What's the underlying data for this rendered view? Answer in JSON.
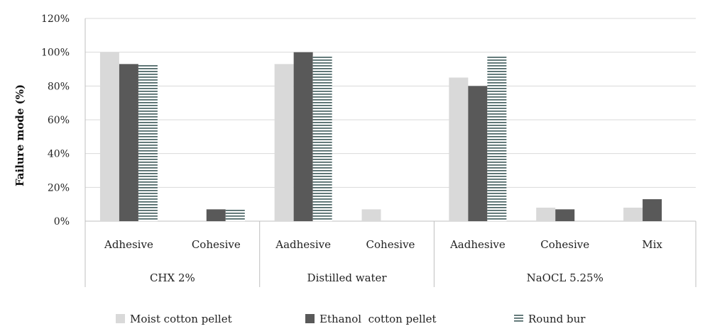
{
  "chart_data": {
    "type": "bar",
    "ylabel": "Failure mode (%)",
    "ylim": [
      0,
      120
    ],
    "yticks": [
      "0%",
      "20%",
      "40%",
      "60%",
      "80%",
      "100%",
      "120%"
    ],
    "grid": true,
    "legend_position": "bottom",
    "groups": [
      {
        "label": "CHX 2%",
        "categories": [
          "Adhesive",
          "Cohesive"
        ]
      },
      {
        "label": "Distilled water",
        "categories": [
          "Aadhesive",
          "Cohesive"
        ]
      },
      {
        "label": "NaOCL 5.25%",
        "categories": [
          "Aadhesive",
          "Cohesive",
          "Mix"
        ]
      }
    ],
    "categories": [
      "Adhesive",
      "Cohesive",
      "Aadhesive",
      "Cohesive",
      "Aadhesive",
      "Cohesive",
      "Mix"
    ],
    "series": [
      {
        "name": "Moist cotton pellet",
        "color": "#d9d9d9",
        "pattern": "solid",
        "values": [
          100,
          0,
          93,
          7,
          85,
          8,
          8
        ]
      },
      {
        "name": "Ethanol  cotton pellet",
        "color": "#595959",
        "pattern": "solid",
        "values": [
          93,
          7,
          100,
          0,
          80,
          7,
          13
        ]
      },
      {
        "name": "Round bur",
        "color": "#3e5a5a",
        "pattern": "horizontal-stripes",
        "values": [
          93,
          7,
          98,
          0,
          98,
          0,
          0
        ]
      }
    ]
  }
}
